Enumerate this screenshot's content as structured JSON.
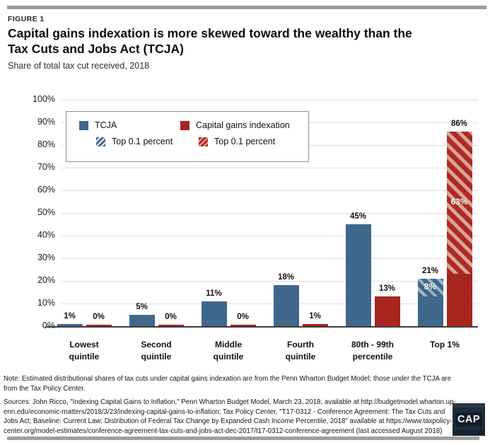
{
  "figure_label": "FIGURE 1",
  "title_line1": "Capital gains indexation is more skewed toward the wealthy than the",
  "title_line2": "Tax Cuts and Jobs Act (TCJA)",
  "subtitle": "Share of total tax cut received, 2018",
  "legend": {
    "items": [
      {
        "label": "TCJA",
        "swatch": "solid-blue"
      },
      {
        "label": "Capital gains indexation",
        "swatch": "solid-red"
      },
      {
        "label": "Top 0.1 percent",
        "swatch": "hatch-blue"
      },
      {
        "label": "Top 0.1 percent",
        "swatch": "hatch-red"
      }
    ]
  },
  "colors": {
    "tcja_blue": "#3F678C",
    "capgains_red": "#A6251F",
    "hatch_red_light": "#d9a49c",
    "gridline": "#dedede",
    "baseline": "#3d3d3d"
  },
  "chart_data": {
    "type": "bar",
    "title": "Share of total tax cut received, 2018",
    "categories": [
      "Lowest quintile",
      "Second quintile",
      "Middle quintile",
      "Fourth quintile",
      "80th - 99th percentile",
      "Top 1%"
    ],
    "category_label_lines": [
      [
        "Lowest",
        "quintile"
      ],
      [
        "Second",
        "quintile"
      ],
      [
        "Middle",
        "quintile"
      ],
      [
        "Fourth",
        "quintile"
      ],
      [
        "80th - 99th",
        "percentile"
      ],
      [
        "Top 1%"
      ]
    ],
    "series": [
      {
        "name": "TCJA",
        "color": "#3F678C",
        "values": [
          1,
          5,
          11,
          18,
          45,
          21
        ],
        "labels": [
          "1%",
          "5%",
          "11%",
          "18%",
          "45%",
          "21%"
        ]
      },
      {
        "name": "Capital gains indexation",
        "color": "#A6251F",
        "values": [
          0,
          0,
          0,
          1,
          13,
          86
        ],
        "labels": [
          "0%",
          "0%",
          "0%",
          "1%",
          "13%",
          "86%"
        ]
      }
    ],
    "top01_overlays": [
      {
        "series_index": 0,
        "category_index": 5,
        "name": "Top 0.1 percent",
        "hatched_points": 8,
        "label": "8%"
      },
      {
        "series_index": 1,
        "category_index": 5,
        "name": "Top 0.1 percent",
        "hatched_points": 63,
        "label": "63%"
      }
    ],
    "ylim": [
      0,
      100
    ],
    "yticks": [
      0,
      10,
      20,
      30,
      40,
      50,
      60,
      70,
      80,
      90,
      100
    ],
    "ytick_labels": [
      "0%",
      "10%",
      "20%",
      "30%",
      "40%",
      "50%",
      "60%",
      "70%",
      "80%",
      "90%",
      "100%"
    ],
    "grid": true,
    "legend_position": "top-left-inside"
  },
  "footer": {
    "note_lines": [
      "Note: Estimated distributional shares of tax cuts under capital gains indexation are from the Penn Wharton Budget Model; those under the TCJA are",
      "from the Tax Policy Center."
    ],
    "sources_lines": [
      "Sources: John Ricco, \"Indexing Capital Gains to Inflation,\" Penn Wharton Budget Model, March 23, 2018, available at http://budgetmodel.wharton.up-",
      "enn.edu/economic-matters/2018/3/23/indexing-capital-gains-to-inflation; Tax Policy Center, \"T17-0312 - Conference Agreement: The Tax Cuts and",
      "Jobs Act; Baseline: Current Law; Distribution of Federal Tax Change by Expanded Cash Income Percentile, 2018\" available at https://www.taxpolicy-",
      "center.org/model-estimates/conference-agreement-tax-cuts-and-jobs-act-dec-2017/t17-0312-conference-agreement (last accessed August 2018)"
    ]
  },
  "logo": {
    "text": "CAP"
  }
}
